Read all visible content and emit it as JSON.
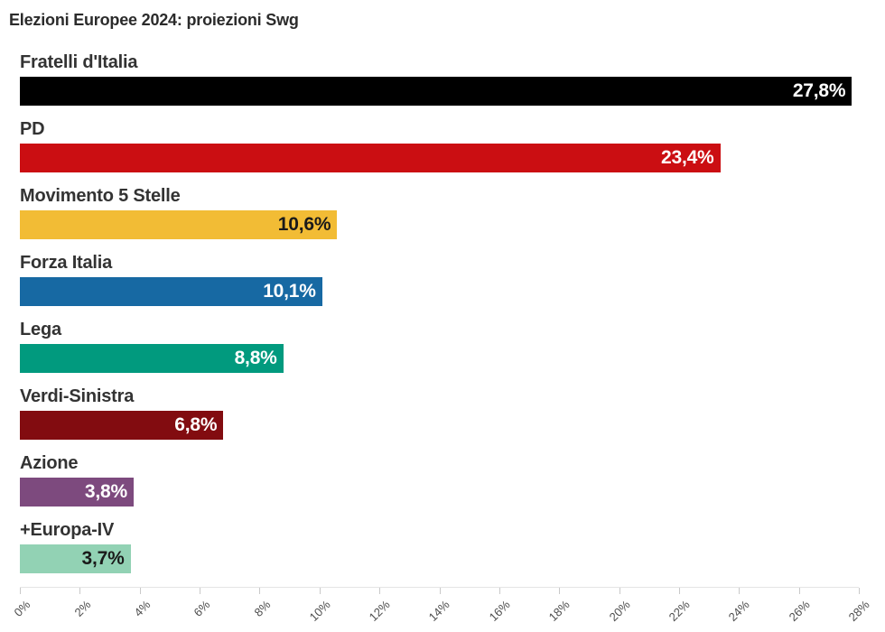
{
  "title": "Elezioni Europee 2024: proiezioni Swg",
  "chart_data": {
    "type": "bar",
    "orientation": "horizontal",
    "title": "Elezioni Europee 2024: proiezioni Swg",
    "categories": [
      "Fratelli d'Italia",
      "PD",
      "Movimento 5 Stelle",
      "Forza Italia",
      "Lega",
      "Verdi-Sinistra",
      "Azione",
      "+Europa-IV"
    ],
    "values": [
      27.8,
      23.4,
      10.6,
      10.1,
      8.8,
      6.8,
      3.8,
      3.7
    ],
    "value_labels": [
      "27,8%",
      "23,4%",
      "10,6%",
      "10,1%",
      "8,8%",
      "6,8%",
      "3,8%",
      "3,7%"
    ],
    "bar_colors": [
      "#000000",
      "#cb0e12",
      "#f2bc35",
      "#1769a3",
      "#019a7e",
      "#820c10",
      "#7d4a7e",
      "#92d2b4"
    ],
    "value_label_colors": [
      "#ffffff",
      "#ffffff",
      "#1a1a1a",
      "#ffffff",
      "#ffffff",
      "#ffffff",
      "#ffffff",
      "#1a1a1a"
    ],
    "xlabel": "",
    "ylabel": "",
    "xlim": [
      0,
      28
    ],
    "x_tick_step": 2,
    "x_tick_labels": [
      "0%",
      "2%",
      "4%",
      "6%",
      "8%",
      "10%",
      "12%",
      "14%",
      "16%",
      "18%",
      "20%",
      "22%",
      "24%",
      "26%",
      "28%"
    ],
    "grid": false,
    "legend": false,
    "value_labels_position": "inside-end",
    "axis_line_color": "#e5e5e5",
    "tick_color": "#c9c9c9",
    "tick_label_color": "#4d4d4d",
    "category_label_color": "#333333",
    "background_color": "#ffffff"
  }
}
